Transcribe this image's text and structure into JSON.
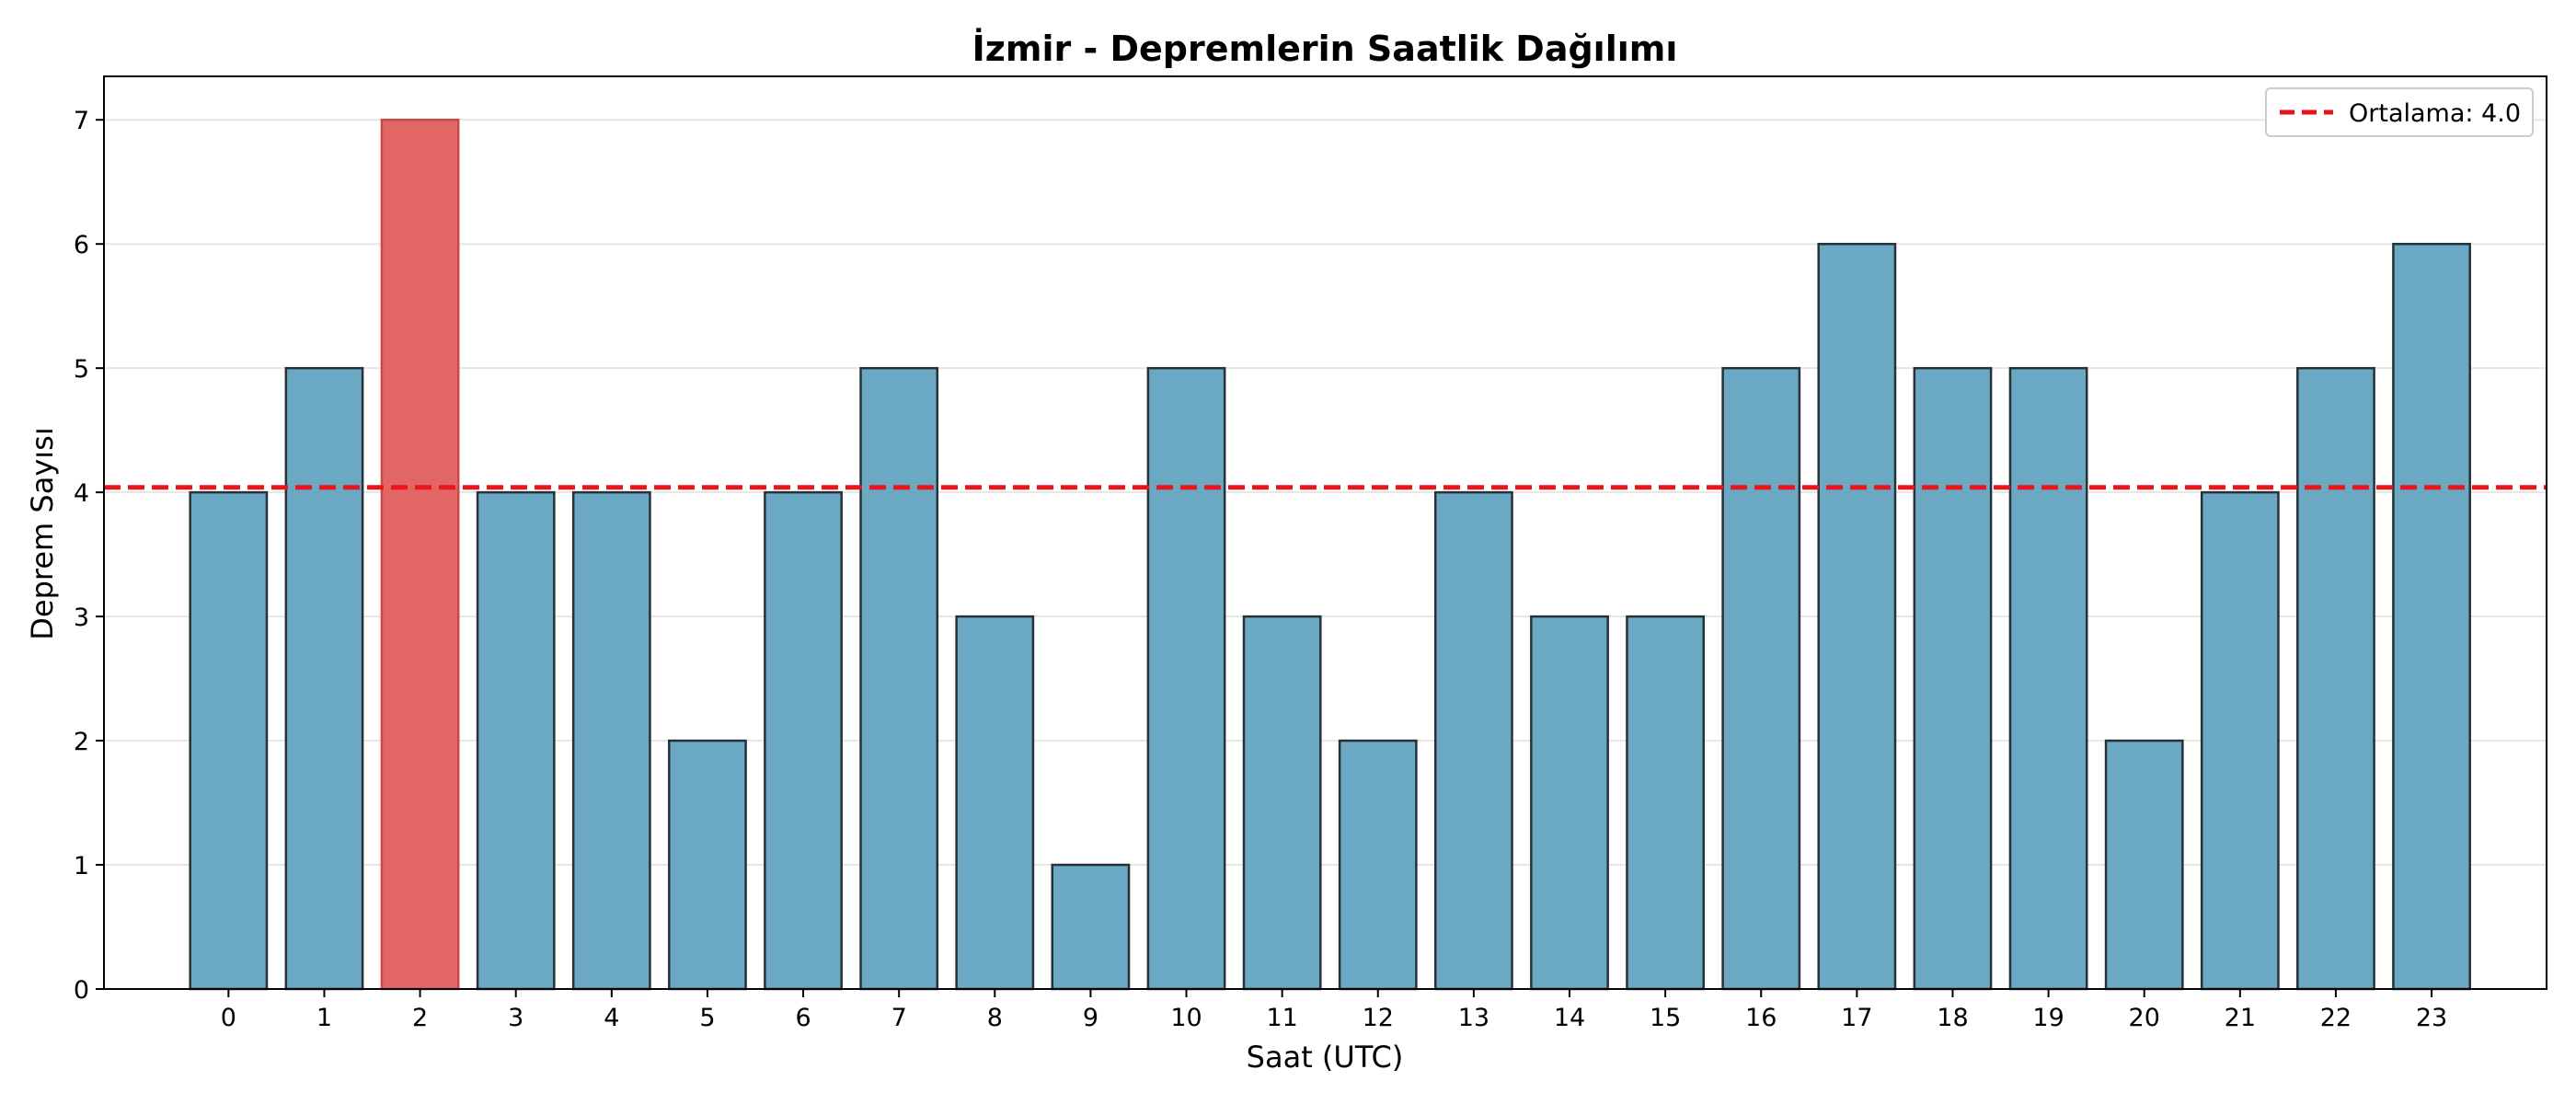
{
  "chart_data": {
    "type": "bar",
    "title": "İzmir - Depremlerin Saatlik Dağılımı",
    "xlabel": "Saat (UTC)",
    "ylabel": "Deprem Sayısı",
    "categories": [
      "0",
      "1",
      "2",
      "3",
      "4",
      "5",
      "6",
      "7",
      "8",
      "9",
      "10",
      "11",
      "12",
      "13",
      "14",
      "15",
      "16",
      "17",
      "18",
      "19",
      "20",
      "21",
      "22",
      "23"
    ],
    "values": [
      4,
      5,
      7,
      4,
      4,
      2,
      4,
      5,
      3,
      1,
      5,
      3,
      2,
      4,
      3,
      3,
      5,
      6,
      5,
      5,
      2,
      4,
      5,
      6
    ],
    "highlight_index": 2,
    "ylim": [
      0,
      7.35
    ],
    "yticks": [
      "0",
      "1",
      "2",
      "3",
      "4",
      "5",
      "6",
      "7"
    ],
    "mean_value": 4.04,
    "grid": "y",
    "legend": {
      "placement": "top-right",
      "label": "Ortalama: 4.0"
    },
    "colors": {
      "bar": "#6aa8c4",
      "bar_highlight": "#e36666",
      "bar_edge": "#263238",
      "highlight_edge": "#c94848",
      "mean_line": "#e8151b",
      "grid": "#e6e6e6"
    }
  }
}
